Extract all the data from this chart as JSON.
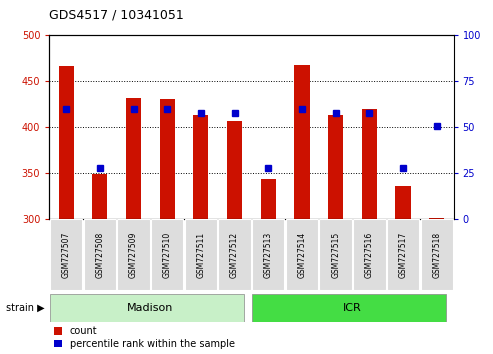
{
  "title": "GDS4517 / 10341051",
  "samples": [
    "GSM727507",
    "GSM727508",
    "GSM727509",
    "GSM727510",
    "GSM727511",
    "GSM727512",
    "GSM727513",
    "GSM727514",
    "GSM727515",
    "GSM727516",
    "GSM727517",
    "GSM727518"
  ],
  "counts": [
    467,
    349,
    432,
    431,
    413,
    407,
    344,
    468,
    414,
    420,
    336,
    302
  ],
  "percentiles": [
    60,
    28,
    60,
    60,
    58,
    58,
    28,
    60,
    58,
    58,
    28,
    51
  ],
  "bar_color": "#cc1100",
  "dot_color": "#0000cc",
  "ylim_left": [
    300,
    500
  ],
  "ylim_right": [
    0,
    100
  ],
  "yticks_left": [
    300,
    350,
    400,
    450,
    500
  ],
  "yticks_right": [
    0,
    25,
    50,
    75,
    100
  ],
  "groups": [
    {
      "label": "Madison",
      "start": 0,
      "end": 6,
      "color": "#c8f0c8"
    },
    {
      "label": "ICR",
      "start": 6,
      "end": 12,
      "color": "#44dd44"
    }
  ],
  "strain_label": "strain",
  "legend_count": "count",
  "legend_pct": "percentile rank within the sample"
}
